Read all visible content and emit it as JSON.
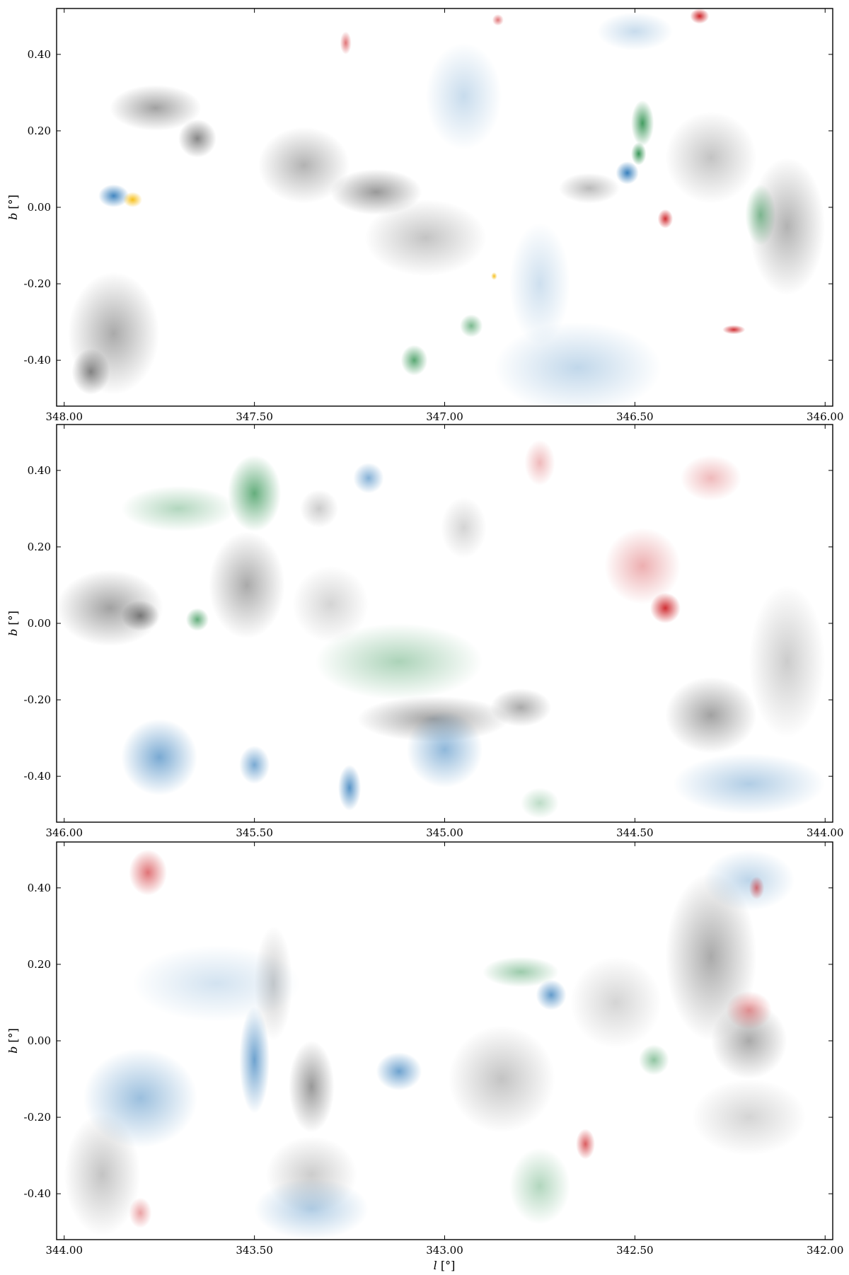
{
  "figure": {
    "xlabel_sym": "l",
    "ylabel_sym": "b",
    "unit": "[°]"
  },
  "colors": {
    "gray": "#555555",
    "blue": "#2171b5",
    "green": "#238b45",
    "red": "#cb181d",
    "orange": "#f5b800"
  },
  "chart_data": [
    {
      "type": "heatmap",
      "panel": "top",
      "xlim": [
        348.02,
        345.98
      ],
      "ylim": [
        -0.52,
        0.52
      ],
      "xticks": [
        348.0,
        347.5,
        347.0,
        346.5,
        346.0
      ],
      "xtick_labels": [
        "348.00",
        "347.50",
        "347.00",
        "346.50",
        "346.00"
      ],
      "yticks": [
        -0.4,
        -0.2,
        0.0,
        0.2,
        0.4
      ],
      "ytick_labels": [
        "-0.40",
        "-0.20",
        "0.00",
        "0.20",
        "0.40"
      ],
      "xlabel": "",
      "ylabel": "b [°]",
      "clouds": [
        {
          "c": "gray",
          "l": 347.76,
          "b": 0.26,
          "rl": 0.12,
          "rb": 0.06,
          "a": 0.55
        },
        {
          "c": "gray",
          "l": 347.65,
          "b": 0.18,
          "rl": 0.05,
          "rb": 0.05,
          "a": 0.7
        },
        {
          "c": "gray",
          "l": 347.37,
          "b": 0.11,
          "rl": 0.12,
          "rb": 0.1,
          "a": 0.45
        },
        {
          "c": "gray",
          "l": 347.18,
          "b": 0.04,
          "rl": 0.12,
          "rb": 0.06,
          "a": 0.6
        },
        {
          "c": "gray",
          "l": 347.05,
          "b": -0.08,
          "rl": 0.16,
          "rb": 0.1,
          "a": 0.35
        },
        {
          "c": "gray",
          "l": 347.87,
          "b": -0.33,
          "rl": 0.12,
          "rb": 0.16,
          "a": 0.5
        },
        {
          "c": "gray",
          "l": 347.93,
          "b": -0.43,
          "rl": 0.05,
          "rb": 0.06,
          "a": 0.7
        },
        {
          "c": "gray",
          "l": 346.62,
          "b": 0.05,
          "rl": 0.08,
          "rb": 0.04,
          "a": 0.4
        },
        {
          "c": "gray",
          "l": 346.3,
          "b": 0.13,
          "rl": 0.12,
          "rb": 0.12,
          "a": 0.35
        },
        {
          "c": "gray",
          "l": 346.1,
          "b": -0.05,
          "rl": 0.1,
          "rb": 0.18,
          "a": 0.45
        },
        {
          "c": "blue",
          "l": 346.65,
          "b": -0.42,
          "rl": 0.22,
          "rb": 0.12,
          "a": 0.28
        },
        {
          "c": "blue",
          "l": 346.75,
          "b": -0.2,
          "rl": 0.08,
          "rb": 0.16,
          "a": 0.22
        },
        {
          "c": "blue",
          "l": 346.95,
          "b": 0.29,
          "rl": 0.1,
          "rb": 0.14,
          "a": 0.25
        },
        {
          "c": "blue",
          "l": 346.5,
          "b": 0.46,
          "rl": 0.1,
          "rb": 0.05,
          "a": 0.25
        },
        {
          "c": "blue",
          "l": 347.87,
          "b": 0.03,
          "rl": 0.04,
          "rb": 0.03,
          "a": 0.85
        },
        {
          "c": "blue",
          "l": 346.52,
          "b": 0.09,
          "rl": 0.03,
          "rb": 0.03,
          "a": 0.9
        },
        {
          "c": "green",
          "l": 346.48,
          "b": 0.22,
          "rl": 0.03,
          "rb": 0.06,
          "a": 0.85
        },
        {
          "c": "green",
          "l": 346.49,
          "b": 0.14,
          "rl": 0.02,
          "rb": 0.03,
          "a": 0.9
        },
        {
          "c": "green",
          "l": 347.08,
          "b": -0.4,
          "rl": 0.035,
          "rb": 0.04,
          "a": 0.75
        },
        {
          "c": "green",
          "l": 346.93,
          "b": -0.31,
          "rl": 0.03,
          "rb": 0.03,
          "a": 0.6
        },
        {
          "c": "green",
          "l": 346.17,
          "b": -0.02,
          "rl": 0.04,
          "rb": 0.08,
          "a": 0.55
        },
        {
          "c": "red",
          "l": 346.42,
          "b": -0.03,
          "rl": 0.02,
          "rb": 0.025,
          "a": 0.9
        },
        {
          "c": "red",
          "l": 346.24,
          "b": -0.32,
          "rl": 0.03,
          "rb": 0.012,
          "a": 0.9
        },
        {
          "c": "red",
          "l": 346.33,
          "b": 0.5,
          "rl": 0.025,
          "rb": 0.02,
          "a": 0.95
        },
        {
          "c": "red",
          "l": 346.86,
          "b": 0.49,
          "rl": 0.015,
          "rb": 0.015,
          "a": 0.6
        },
        {
          "c": "red",
          "l": 347.26,
          "b": 0.43,
          "rl": 0.015,
          "rb": 0.03,
          "a": 0.6
        },
        {
          "c": "orange",
          "l": 347.82,
          "b": 0.02,
          "rl": 0.025,
          "rb": 0.02,
          "a": 0.9
        },
        {
          "c": "orange",
          "l": 346.87,
          "b": -0.18,
          "rl": 0.008,
          "rb": 0.01,
          "a": 0.9
        }
      ]
    },
    {
      "type": "heatmap",
      "panel": "middle",
      "xlim": [
        346.02,
        343.98
      ],
      "ylim": [
        -0.52,
        0.52
      ],
      "xticks": [
        346.0,
        345.5,
        345.0,
        344.5,
        344.0
      ],
      "xtick_labels": [
        "346.00",
        "345.50",
        "345.00",
        "344.50",
        "344.00"
      ],
      "yticks": [
        -0.4,
        -0.2,
        0.0,
        0.2,
        0.4
      ],
      "ytick_labels": [
        "-0.40",
        "-0.20",
        "0.00",
        "0.20",
        "0.40"
      ],
      "xlabel": "",
      "ylabel": "b [°]",
      "clouds": [
        {
          "c": "gray",
          "l": 345.88,
          "b": 0.04,
          "rl": 0.14,
          "rb": 0.1,
          "a": 0.55
        },
        {
          "c": "gray",
          "l": 345.8,
          "b": 0.02,
          "rl": 0.05,
          "rb": 0.04,
          "a": 0.75
        },
        {
          "c": "gray",
          "l": 345.52,
          "b": 0.1,
          "rl": 0.1,
          "rb": 0.14,
          "a": 0.5
        },
        {
          "c": "gray",
          "l": 345.03,
          "b": -0.25,
          "rl": 0.2,
          "rb": 0.06,
          "a": 0.55
        },
        {
          "c": "gray",
          "l": 344.8,
          "b": -0.22,
          "rl": 0.08,
          "rb": 0.05,
          "a": 0.5
        },
        {
          "c": "gray",
          "l": 344.3,
          "b": -0.24,
          "rl": 0.12,
          "rb": 0.1,
          "a": 0.55
        },
        {
          "c": "gray",
          "l": 344.1,
          "b": -0.1,
          "rl": 0.1,
          "rb": 0.2,
          "a": 0.3
        },
        {
          "c": "gray",
          "l": 345.3,
          "b": 0.05,
          "rl": 0.1,
          "rb": 0.1,
          "a": 0.25
        },
        {
          "c": "gray",
          "l": 345.33,
          "b": 0.3,
          "rl": 0.05,
          "rb": 0.05,
          "a": 0.3
        },
        {
          "c": "gray",
          "l": 344.95,
          "b": 0.25,
          "rl": 0.06,
          "rb": 0.08,
          "a": 0.25
        },
        {
          "c": "blue",
          "l": 345.75,
          "b": -0.35,
          "rl": 0.1,
          "rb": 0.1,
          "a": 0.6
        },
        {
          "c": "blue",
          "l": 345.5,
          "b": -0.37,
          "rl": 0.04,
          "rb": 0.05,
          "a": 0.6
        },
        {
          "c": "blue",
          "l": 345.0,
          "b": -0.33,
          "rl": 0.1,
          "rb": 0.1,
          "a": 0.5
        },
        {
          "c": "blue",
          "l": 345.25,
          "b": -0.43,
          "rl": 0.03,
          "rb": 0.06,
          "a": 0.75
        },
        {
          "c": "blue",
          "l": 344.2,
          "b": -0.42,
          "rl": 0.2,
          "rb": 0.08,
          "a": 0.35
        },
        {
          "c": "blue",
          "l": 345.2,
          "b": 0.38,
          "rl": 0.04,
          "rb": 0.04,
          "a": 0.55
        },
        {
          "c": "green",
          "l": 345.5,
          "b": 0.34,
          "rl": 0.07,
          "rb": 0.1,
          "a": 0.7
        },
        {
          "c": "green",
          "l": 345.7,
          "b": 0.3,
          "rl": 0.15,
          "rb": 0.06,
          "a": 0.35
        },
        {
          "c": "green",
          "l": 345.12,
          "b": -0.1,
          "rl": 0.22,
          "rb": 0.1,
          "a": 0.38
        },
        {
          "c": "green",
          "l": 345.65,
          "b": 0.01,
          "rl": 0.03,
          "rb": 0.03,
          "a": 0.7
        },
        {
          "c": "green",
          "l": 344.75,
          "b": -0.47,
          "rl": 0.05,
          "rb": 0.04,
          "a": 0.3
        },
        {
          "c": "red",
          "l": 344.42,
          "b": 0.04,
          "rl": 0.04,
          "rb": 0.04,
          "a": 0.9
        },
        {
          "c": "red",
          "l": 344.48,
          "b": 0.15,
          "rl": 0.1,
          "rb": 0.1,
          "a": 0.35
        },
        {
          "c": "red",
          "l": 344.3,
          "b": 0.38,
          "rl": 0.08,
          "rb": 0.06,
          "a": 0.3
        },
        {
          "c": "red",
          "l": 344.75,
          "b": 0.42,
          "rl": 0.04,
          "rb": 0.06,
          "a": 0.3
        }
      ]
    },
    {
      "type": "heatmap",
      "panel": "bottom",
      "xlim": [
        344.02,
        341.98
      ],
      "ylim": [
        -0.52,
        0.52
      ],
      "xticks": [
        344.0,
        343.5,
        343.0,
        342.5,
        342.0
      ],
      "xtick_labels": [
        "344.00",
        "343.50",
        "343.00",
        "342.50",
        "342.00"
      ],
      "yticks": [
        -0.4,
        -0.2,
        0.0,
        0.2,
        0.4
      ],
      "ytick_labels": [
        "-0.40",
        "-0.20",
        "0.00",
        "0.20",
        "0.40"
      ],
      "xlabel": "l [°]",
      "ylabel": "b [°]",
      "clouds": [
        {
          "c": "gray",
          "l": 343.35,
          "b": -0.12,
          "rl": 0.06,
          "rb": 0.12,
          "a": 0.6
        },
        {
          "c": "gray",
          "l": 342.85,
          "b": -0.1,
          "rl": 0.14,
          "rb": 0.14,
          "a": 0.35
        },
        {
          "c": "gray",
          "l": 342.3,
          "b": 0.22,
          "rl": 0.12,
          "rb": 0.22,
          "a": 0.5
        },
        {
          "c": "gray",
          "l": 342.2,
          "b": 0.0,
          "rl": 0.1,
          "rb": 0.1,
          "a": 0.5
        },
        {
          "c": "gray",
          "l": 342.55,
          "b": 0.1,
          "rl": 0.12,
          "rb": 0.12,
          "a": 0.25
        },
        {
          "c": "gray",
          "l": 343.9,
          "b": -0.35,
          "rl": 0.1,
          "rb": 0.16,
          "a": 0.35
        },
        {
          "c": "gray",
          "l": 343.35,
          "b": -0.35,
          "rl": 0.12,
          "rb": 0.1,
          "a": 0.3
        },
        {
          "c": "gray",
          "l": 343.45,
          "b": 0.15,
          "rl": 0.05,
          "rb": 0.15,
          "a": 0.3
        },
        {
          "c": "gray",
          "l": 342.2,
          "b": -0.2,
          "rl": 0.15,
          "rb": 0.1,
          "a": 0.25
        },
        {
          "c": "blue",
          "l": 343.8,
          "b": -0.15,
          "rl": 0.15,
          "rb": 0.13,
          "a": 0.45
        },
        {
          "c": "blue",
          "l": 343.5,
          "b": -0.05,
          "rl": 0.04,
          "rb": 0.14,
          "a": 0.65
        },
        {
          "c": "blue",
          "l": 343.12,
          "b": -0.08,
          "rl": 0.06,
          "rb": 0.05,
          "a": 0.65
        },
        {
          "c": "blue",
          "l": 343.6,
          "b": 0.15,
          "rl": 0.22,
          "rb": 0.1,
          "a": 0.2
        },
        {
          "c": "blue",
          "l": 343.35,
          "b": -0.44,
          "rl": 0.15,
          "rb": 0.08,
          "a": 0.35
        },
        {
          "c": "blue",
          "l": 342.72,
          "b": 0.12,
          "rl": 0.04,
          "rb": 0.04,
          "a": 0.7
        },
        {
          "c": "blue",
          "l": 342.2,
          "b": 0.42,
          "rl": 0.12,
          "rb": 0.08,
          "a": 0.3
        },
        {
          "c": "green",
          "l": 342.8,
          "b": 0.18,
          "rl": 0.1,
          "rb": 0.04,
          "a": 0.45
        },
        {
          "c": "green",
          "l": 342.75,
          "b": -0.38,
          "rl": 0.08,
          "rb": 0.1,
          "a": 0.35
        },
        {
          "c": "green",
          "l": 342.45,
          "b": -0.05,
          "rl": 0.04,
          "rb": 0.04,
          "a": 0.5
        },
        {
          "c": "red",
          "l": 343.78,
          "b": 0.44,
          "rl": 0.05,
          "rb": 0.06,
          "a": 0.6
        },
        {
          "c": "red",
          "l": 342.63,
          "b": -0.27,
          "rl": 0.025,
          "rb": 0.04,
          "a": 0.7
        },
        {
          "c": "red",
          "l": 342.18,
          "b": 0.4,
          "rl": 0.02,
          "rb": 0.03,
          "a": 0.6
        },
        {
          "c": "red",
          "l": 342.2,
          "b": 0.08,
          "rl": 0.06,
          "rb": 0.05,
          "a": 0.45
        },
        {
          "c": "red",
          "l": 343.8,
          "b": -0.45,
          "rl": 0.03,
          "rb": 0.04,
          "a": 0.4
        }
      ]
    }
  ]
}
